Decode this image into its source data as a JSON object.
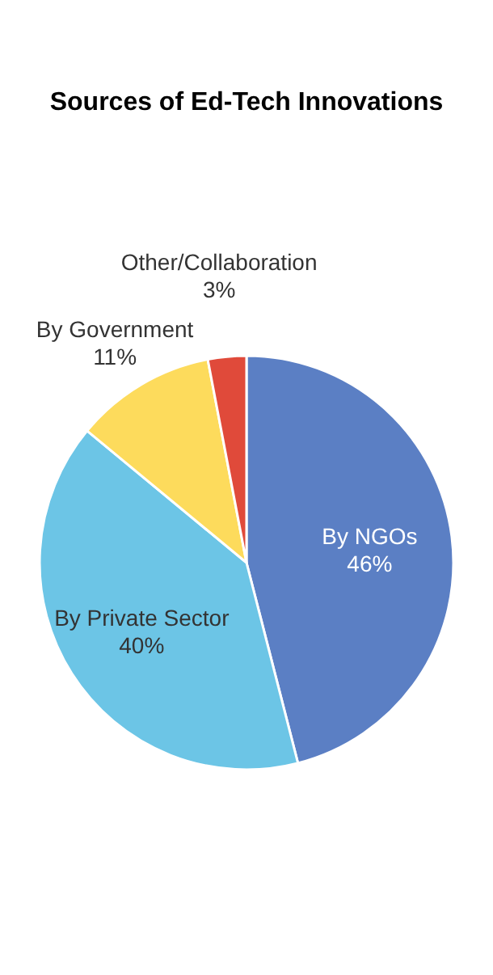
{
  "chart_data": {
    "type": "pie",
    "title": "Sources of Ed-Tech Innovations",
    "categories": [
      "By NGOs",
      "By Private Sector",
      "By Government",
      "Other/Collaboration"
    ],
    "values": [
      46,
      40,
      11,
      3
    ],
    "colors": [
      "#5b7fc4",
      "#6cc5e6",
      "#fddb5c",
      "#e04a3a"
    ],
    "value_labels": [
      "46%",
      "40%",
      "11%",
      "3%"
    ]
  }
}
